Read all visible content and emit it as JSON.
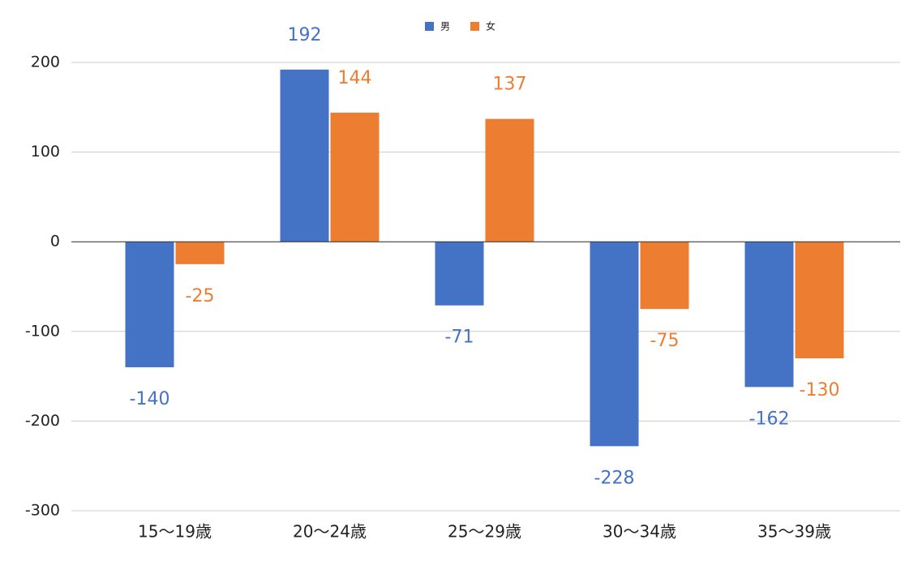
{
  "chart_data": {
    "type": "bar",
    "categories": [
      "15～19歳",
      "20～24歳",
      "25～29歳",
      "30～34歳",
      "35～39歳"
    ],
    "series": [
      {
        "name": "男",
        "color": "#4472c4",
        "values": [
          -140,
          192,
          -71,
          -228,
          -162
        ]
      },
      {
        "name": "女",
        "color": "#ed7d31",
        "values": [
          -25,
          144,
          137,
          -75,
          -130
        ]
      }
    ],
    "ylim": [
      -300,
      200
    ],
    "yticks": [
      -300,
      -200,
      -100,
      0,
      100,
      200
    ],
    "grid": true,
    "legend": "top"
  }
}
